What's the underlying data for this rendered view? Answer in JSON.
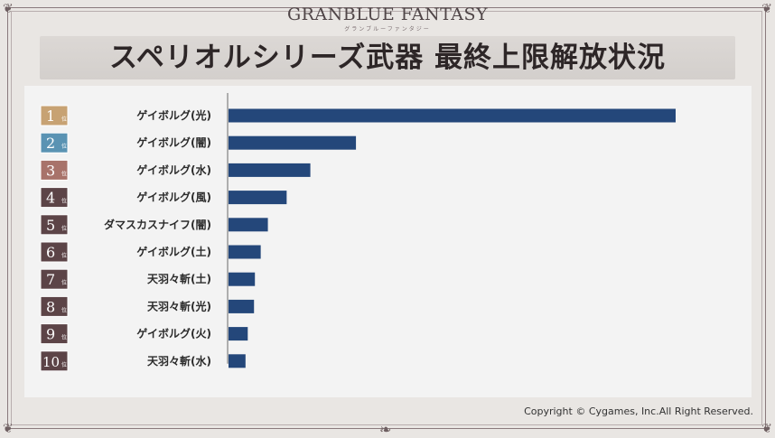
{
  "brand": {
    "logo_text": "GRANBLUE FANTASY",
    "logo_sub": "グランブルーファンタジー"
  },
  "title": "スペリオルシリーズ武器 最終上限解放状況",
  "copyright": "Copyright © Cygames, Inc.All Right Reserved.",
  "rank_suffix": "位",
  "colors": {
    "bar": "#24477a",
    "axis": "#6a6a6a",
    "rank_badges": [
      "#c7a273",
      "#5a93b3",
      "#a8736a",
      "#5c4447",
      "#5c4447",
      "#5c4447",
      "#5c4447",
      "#5c4447",
      "#5c4447",
      "#5c4447"
    ]
  },
  "chart_data": {
    "type": "bar",
    "orientation": "horizontal",
    "title": "",
    "xlabel": "",
    "ylabel": "",
    "xlim": [
      0,
      100
    ],
    "grid": false,
    "legend": "none",
    "categories": [
      "ゲイボルグ(光)",
      "ゲイボルグ(闇)",
      "ゲイボルグ(水)",
      "ゲイボルグ(風)",
      "ダマスカスナイフ(闇)",
      "ゲイボルグ(土)",
      "天羽々斬(土)",
      "天羽々斬(光)",
      "ゲイボルグ(火)",
      "天羽々斬(水)"
    ],
    "ranks": [
      "1",
      "2",
      "3",
      "4",
      "5",
      "6",
      "7",
      "8",
      "9",
      "10"
    ],
    "values": [
      100,
      28.5,
      18.3,
      13,
      8.8,
      7.2,
      5.9,
      5.7,
      4.3,
      3.8
    ]
  }
}
